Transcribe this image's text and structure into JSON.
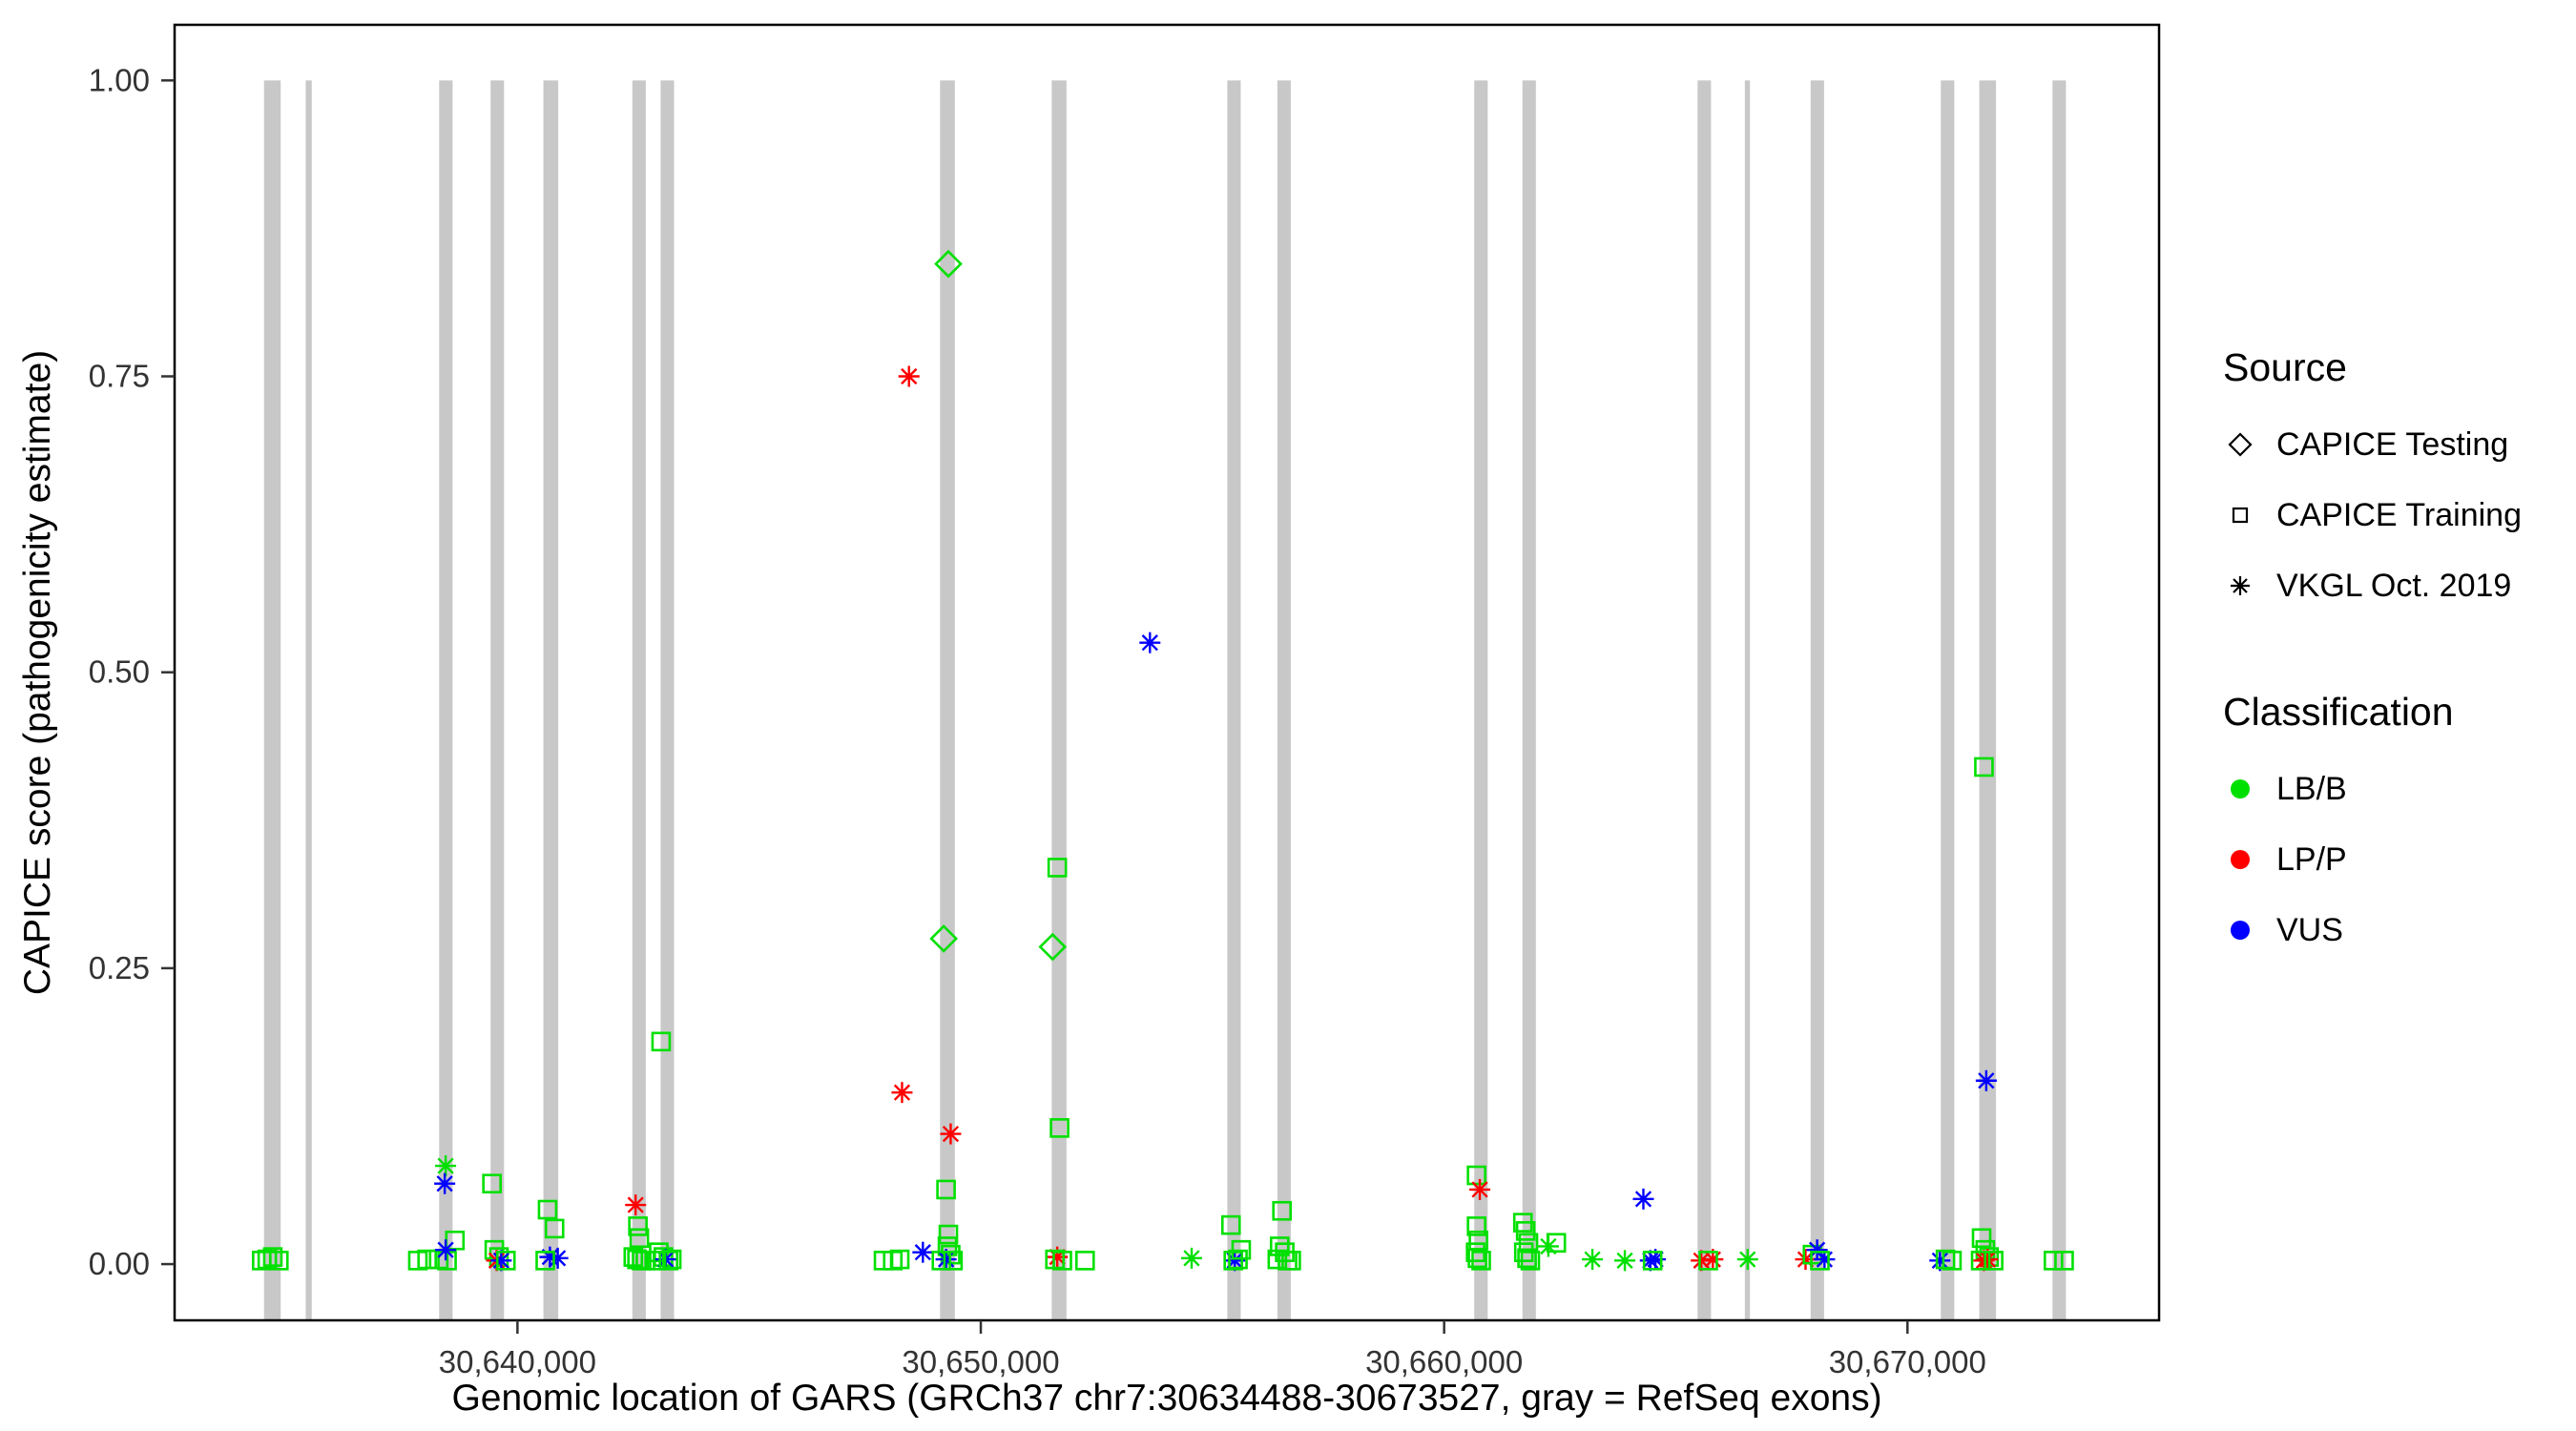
{
  "axes": {
    "y_title": "CAPICE score (pathogenicity estimate)",
    "x_title": "Genomic location of GARS (GRCh37 chr7:30634488-30673527, gray = RefSeq exons)",
    "y_ticks": [
      {
        "value": 0.0,
        "label": "0.00"
      },
      {
        "value": 0.25,
        "label": "0.25"
      },
      {
        "value": 0.5,
        "label": "0.50"
      },
      {
        "value": 0.75,
        "label": "0.75"
      },
      {
        "value": 1.0,
        "label": "1.00"
      }
    ],
    "x_ticks": [
      {
        "value": 30640000,
        "label": "30,640,000"
      },
      {
        "value": 30650000,
        "label": "30,650,000"
      },
      {
        "value": 30660000,
        "label": "30,660,000"
      },
      {
        "value": 30670000,
        "label": "30,670,000"
      }
    ]
  },
  "legend": {
    "source": {
      "title": "Source",
      "items": [
        {
          "label": "CAPICE Testing",
          "shape": "diamond"
        },
        {
          "label": "CAPICE Training",
          "shape": "square"
        },
        {
          "label": "VKGL Oct. 2019",
          "shape": "asterisk"
        }
      ]
    },
    "classification": {
      "title": "Classification",
      "items": [
        {
          "label": "LB/B",
          "color": "#00E000"
        },
        {
          "label": "LP/P",
          "color": "#FF0000"
        },
        {
          "label": "VUS",
          "color": "#0000FF"
        }
      ]
    }
  },
  "chart_data": {
    "type": "scatter",
    "title": "",
    "xlabel": "Genomic location of GARS (GRCh37 chr7:30634488-30673527, gray = RefSeq exons)",
    "ylabel": "CAPICE score (pathogenicity estimate)",
    "x_domain": [
      30632600,
      30675430
    ],
    "y_domain": [
      -0.0475,
      1.047
    ],
    "grid": false,
    "legend_position": "right",
    "exon_color": "#C8C8C8",
    "class_colors": {
      "LB/B": "#00E000",
      "LP/P": "#FF0000",
      "VUS": "#0000FF"
    },
    "shape_by_source": {
      "testing": "diamond",
      "training": "square",
      "vkgl": "asterisk"
    },
    "exons_note": "gray vertical bars = RefSeq exons, drawn from score 0 baseline area up to 1.0; pairs are [start,end] genomic positions",
    "exons": [
      [
        30634530,
        30634890
      ],
      [
        30635430,
        30635560
      ],
      [
        30638310,
        30638600
      ],
      [
        30639420,
        30639710
      ],
      [
        30640560,
        30640880
      ],
      [
        30642480,
        30642770
      ],
      [
        30643090,
        30643380
      ],
      [
        30649120,
        30649440
      ],
      [
        30651530,
        30651850
      ],
      [
        30655320,
        30655610
      ],
      [
        30656400,
        30656690
      ],
      [
        30660650,
        30660940
      ],
      [
        30661690,
        30661980
      ],
      [
        30665470,
        30665760
      ],
      [
        30666490,
        30666600
      ],
      [
        30667910,
        30668200
      ],
      [
        30670720,
        30671010
      ],
      [
        30671550,
        30671910
      ],
      [
        30673130,
        30673420
      ]
    ],
    "points_format": [
      "genomic_position",
      "capice_score",
      "source",
      "classification"
    ],
    "points": [
      [
        30634480,
        0.003,
        "training",
        "LB/B"
      ],
      [
        30634600,
        0.004,
        "training",
        "LB/B"
      ],
      [
        30634720,
        0.006,
        "training",
        "LB/B"
      ],
      [
        30634850,
        0.003,
        "training",
        "LB/B"
      ],
      [
        30637850,
        0.003,
        "training",
        "LB/B"
      ],
      [
        30638050,
        0.004,
        "training",
        "LB/B"
      ],
      [
        30638300,
        0.004,
        "training",
        "LB/B"
      ],
      [
        30638480,
        0.003,
        "training",
        "LB/B"
      ],
      [
        30638650,
        0.02,
        "training",
        "LB/B"
      ],
      [
        30638450,
        0.083,
        "vkgl",
        "LB/B"
      ],
      [
        30638430,
        0.068,
        "vkgl",
        "VUS"
      ],
      [
        30638450,
        0.012,
        "vkgl",
        "VUS"
      ],
      [
        30639450,
        0.068,
        "training",
        "LB/B"
      ],
      [
        30639500,
        0.012,
        "training",
        "LB/B"
      ],
      [
        30639600,
        0.006,
        "training",
        "LB/B"
      ],
      [
        30639550,
        0.003,
        "vkgl",
        "LP/P"
      ],
      [
        30639650,
        0.003,
        "vkgl",
        "VUS"
      ],
      [
        30639750,
        0.003,
        "training",
        "LB/B"
      ],
      [
        30640650,
        0.046,
        "training",
        "LB/B"
      ],
      [
        30640800,
        0.03,
        "training",
        "LB/B"
      ],
      [
        30640700,
        0.006,
        "vkgl",
        "VUS"
      ],
      [
        30640870,
        0.005,
        "vkgl",
        "VUS"
      ],
      [
        30640600,
        0.003,
        "training",
        "LB/B"
      ],
      [
        30642550,
        0.05,
        "vkgl",
        "LP/P"
      ],
      [
        30642600,
        0.032,
        "training",
        "LB/B"
      ],
      [
        30642630,
        0.022,
        "training",
        "LB/B"
      ],
      [
        30642500,
        0.006,
        "training",
        "LB/B"
      ],
      [
        30642580,
        0.004,
        "training",
        "LB/B"
      ],
      [
        30642680,
        0.003,
        "training",
        "LB/B"
      ],
      [
        30642760,
        0.003,
        "training",
        "LB/B"
      ],
      [
        30643100,
        0.188,
        "training",
        "LB/B"
      ],
      [
        30643050,
        0.01,
        "training",
        "LB/B"
      ],
      [
        30643150,
        0.006,
        "training",
        "LB/B"
      ],
      [
        30643200,
        0.004,
        "vkgl",
        "VUS"
      ],
      [
        30643000,
        0.003,
        "training",
        "LB/B"
      ],
      [
        30643260,
        0.003,
        "training",
        "LB/B"
      ],
      [
        30643330,
        0.004,
        "training",
        "LB/B"
      ],
      [
        30647900,
        0.003,
        "training",
        "LB/B"
      ],
      [
        30648100,
        0.003,
        "training",
        "LB/B"
      ],
      [
        30648250,
        0.004,
        "training",
        "LB/B"
      ],
      [
        30648450,
        0.75,
        "vkgl",
        "LP/P"
      ],
      [
        30648300,
        0.145,
        "vkgl",
        "LP/P"
      ],
      [
        30649350,
        0.11,
        "vkgl",
        "LP/P"
      ],
      [
        30649300,
        0.845,
        "testing",
        "LB/B"
      ],
      [
        30649200,
        0.275,
        "testing",
        "LB/B"
      ],
      [
        30649250,
        0.063,
        "training",
        "LB/B"
      ],
      [
        30649300,
        0.025,
        "training",
        "LB/B"
      ],
      [
        30649280,
        0.015,
        "training",
        "LB/B"
      ],
      [
        30649350,
        0.008,
        "training",
        "LB/B"
      ],
      [
        30648750,
        0.01,
        "vkgl",
        "VUS"
      ],
      [
        30649250,
        0.004,
        "vkgl",
        "VUS"
      ],
      [
        30649150,
        0.003,
        "training",
        "LB/B"
      ],
      [
        30649400,
        0.003,
        "training",
        "LB/B"
      ],
      [
        30651550,
        0.268,
        "testing",
        "LB/B"
      ],
      [
        30651650,
        0.335,
        "training",
        "LB/B"
      ],
      [
        30651700,
        0.115,
        "training",
        "LB/B"
      ],
      [
        30651650,
        0.006,
        "vkgl",
        "LP/P"
      ],
      [
        30651600,
        0.004,
        "training",
        "LB/B"
      ],
      [
        30651760,
        0.003,
        "training",
        "LB/B"
      ],
      [
        30652250,
        0.003,
        "training",
        "LB/B"
      ],
      [
        30653650,
        0.525,
        "vkgl",
        "VUS"
      ],
      [
        30654550,
        0.005,
        "vkgl",
        "LB/B"
      ],
      [
        30655400,
        0.033,
        "training",
        "LB/B"
      ],
      [
        30655480,
        0.003,
        "vkgl",
        "VUS"
      ],
      [
        30655550,
        0.004,
        "training",
        "LB/B"
      ],
      [
        30655620,
        0.012,
        "training",
        "LB/B"
      ],
      [
        30655450,
        0.003,
        "training",
        "LB/B"
      ],
      [
        30656500,
        0.045,
        "training",
        "LB/B"
      ],
      [
        30656450,
        0.015,
        "training",
        "LB/B"
      ],
      [
        30656560,
        0.01,
        "training",
        "LB/B"
      ],
      [
        30656400,
        0.004,
        "training",
        "LB/B"
      ],
      [
        30656620,
        0.003,
        "training",
        "LB/B"
      ],
      [
        30656700,
        0.003,
        "training",
        "LB/B"
      ],
      [
        30660700,
        0.075,
        "training",
        "LB/B"
      ],
      [
        30660770,
        0.063,
        "vkgl",
        "LP/P"
      ],
      [
        30660700,
        0.032,
        "training",
        "LB/B"
      ],
      [
        30660740,
        0.02,
        "training",
        "LB/B"
      ],
      [
        30660680,
        0.01,
        "training",
        "LB/B"
      ],
      [
        30660720,
        0.005,
        "training",
        "LB/B"
      ],
      [
        30660800,
        0.003,
        "training",
        "LB/B"
      ],
      [
        30661700,
        0.035,
        "training",
        "LB/B"
      ],
      [
        30661760,
        0.028,
        "training",
        "LB/B"
      ],
      [
        30661820,
        0.018,
        "training",
        "LB/B"
      ],
      [
        30661720,
        0.01,
        "training",
        "LB/B"
      ],
      [
        30661790,
        0.005,
        "training",
        "LB/B"
      ],
      [
        30661860,
        0.003,
        "training",
        "LB/B"
      ],
      [
        30662250,
        0.015,
        "vkgl",
        "LB/B"
      ],
      [
        30662420,
        0.018,
        "training",
        "LB/B"
      ],
      [
        30663200,
        0.004,
        "vkgl",
        "LB/B"
      ],
      [
        30663900,
        0.003,
        "vkgl",
        "LB/B"
      ],
      [
        30664300,
        0.055,
        "vkgl",
        "VUS"
      ],
      [
        30664450,
        0.003,
        "vkgl",
        "VUS"
      ],
      [
        30664560,
        0.004,
        "vkgl",
        "VUS"
      ],
      [
        30664500,
        0.003,
        "training",
        "LB/B"
      ],
      [
        30665550,
        0.003,
        "vkgl",
        "LP/P"
      ],
      [
        30665800,
        0.004,
        "vkgl",
        "LP/P"
      ],
      [
        30665700,
        0.003,
        "training",
        "LB/B"
      ],
      [
        30666550,
        0.004,
        "vkgl",
        "LB/B"
      ],
      [
        30667800,
        0.004,
        "vkgl",
        "LP/P"
      ],
      [
        30667950,
        0.008,
        "training",
        "LB/B"
      ],
      [
        30668050,
        0.012,
        "vkgl",
        "VUS"
      ],
      [
        30668210,
        0.004,
        "vkgl",
        "VUS"
      ],
      [
        30668110,
        0.003,
        "training",
        "LB/B"
      ],
      [
        30670700,
        0.003,
        "vkgl",
        "VUS"
      ],
      [
        30670820,
        0.004,
        "training",
        "LB/B"
      ],
      [
        30670960,
        0.003,
        "training",
        "LB/B"
      ],
      [
        30671650,
        0.42,
        "training",
        "LB/B"
      ],
      [
        30671700,
        0.155,
        "vkgl",
        "VUS"
      ],
      [
        30671600,
        0.022,
        "training",
        "LB/B"
      ],
      [
        30671680,
        0.012,
        "training",
        "LB/B"
      ],
      [
        30671760,
        0.006,
        "training",
        "LB/B"
      ],
      [
        30671650,
        0.003,
        "vkgl",
        "LP/P"
      ],
      [
        30671730,
        0.004,
        "vkgl",
        "LP/P"
      ],
      [
        30671580,
        0.003,
        "training",
        "LB/B"
      ],
      [
        30671860,
        0.003,
        "training",
        "LB/B"
      ],
      [
        30673150,
        0.003,
        "training",
        "LB/B"
      ],
      [
        30673380,
        0.003,
        "training",
        "LB/B"
      ]
    ]
  }
}
